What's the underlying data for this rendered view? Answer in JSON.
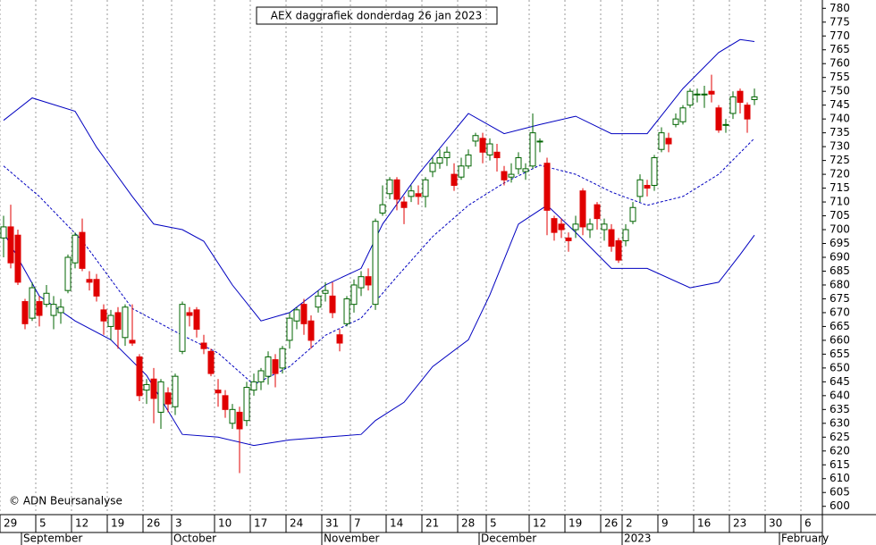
{
  "chart_data": {
    "type": "candlestick",
    "title": "AEX daggrafiek donderdag 26 jan 2023",
    "annotation": "© ADN Beursanalyse",
    "open": [
      697,
      701,
      698,
      674,
      668,
      674,
      673,
      669,
      670,
      678,
      688,
      699,
      682,
      682,
      671,
      665,
      670,
      661,
      660,
      654,
      642,
      646,
      634,
      641,
      636,
      656,
      670,
      671,
      659,
      656,
      642,
      640,
      630,
      634,
      631,
      642,
      645,
      647,
      653,
      650,
      660,
      667,
      673,
      667,
      672,
      677,
      676,
      662,
      666,
      673,
      679,
      683,
      673,
      706,
      713,
      718,
      710,
      712,
      713,
      712,
      721,
      724,
      726,
      720,
      719,
      723,
      732,
      733,
      727,
      728,
      721,
      719,
      722,
      721,
      723,
      732,
      724,
      704,
      702,
      697,
      700,
      714,
      700,
      709,
      700,
      700,
      696,
      696,
      703,
      712,
      716,
      716,
      729,
      733,
      738,
      739,
      745,
      749,
      749,
      750,
      744,
      738,
      742,
      750,
      745,
      747
    ],
    "high": [
      705,
      709,
      700,
      675,
      681,
      676,
      680,
      676,
      675,
      691,
      699,
      704,
      685,
      684,
      673,
      671,
      672,
      673,
      673,
      655,
      646,
      650,
      646,
      643,
      648,
      674,
      672,
      672,
      662,
      657,
      646,
      642,
      637,
      636,
      645,
      648,
      650,
      656,
      655,
      658,
      670,
      672,
      675,
      669,
      678,
      681,
      681,
      664,
      676,
      682,
      685,
      686,
      704,
      716,
      719,
      719,
      712,
      716,
      716,
      719,
      726,
      729,
      730,
      724,
      726,
      729,
      735,
      735,
      733,
      731,
      723,
      724,
      728,
      724,
      742,
      733,
      726,
      705,
      704,
      699,
      705,
      715,
      704,
      710,
      704,
      702,
      697,
      702,
      710,
      720,
      718,
      727,
      737,
      735,
      742,
      745,
      751,
      751,
      752,
      756,
      745,
      740,
      750,
      751,
      746,
      751
    ],
    "low": [
      690,
      686,
      680,
      664,
      667,
      665,
      672,
      664,
      666,
      677,
      686,
      685,
      678,
      674,
      662,
      660,
      657,
      658,
      658,
      638,
      637,
      630,
      628,
      634,
      633,
      655,
      665,
      661,
      655,
      647,
      636,
      632,
      628,
      612,
      629,
      640,
      642,
      644,
      643,
      648,
      657,
      664,
      662,
      657,
      670,
      674,
      668,
      656,
      665,
      670,
      676,
      678,
      671,
      705,
      711,
      707,
      702,
      710,
      709,
      708,
      719,
      722,
      723,
      714,
      718,
      722,
      730,
      724,
      725,
      721,
      716,
      717,
      720,
      718,
      722,
      728,
      698,
      696,
      697,
      692,
      697,
      698,
      697,
      700,
      696,
      692,
      688,
      694,
      702,
      710,
      712,
      714,
      728,
      728,
      737,
      738,
      744,
      746,
      744,
      746,
      735,
      735,
      740,
      742,
      735,
      745
    ],
    "close": [
      701,
      688,
      681,
      666,
      679,
      669,
      677,
      673,
      672,
      690,
      698,
      686,
      681,
      676,
      667,
      669,
      664,
      672,
      659,
      640,
      644,
      639,
      645,
      637,
      647,
      673,
      669,
      664,
      657,
      648,
      641,
      635,
      635,
      628,
      643,
      645,
      649,
      654,
      648,
      657,
      668,
      671,
      666,
      660,
      676,
      678,
      670,
      659,
      675,
      680,
      683,
      680,
      703,
      709,
      718,
      711,
      708,
      714,
      712,
      718,
      724,
      726,
      728,
      716,
      723,
      727,
      734,
      728,
      731,
      726,
      718,
      720,
      726,
      722,
      735,
      732,
      707,
      699,
      700,
      696,
      702,
      701,
      702,
      704,
      702,
      694,
      689,
      700,
      708,
      718,
      715,
      726,
      735,
      731,
      740,
      744,
      750,
      749,
      749,
      749,
      736,
      738,
      748,
      746,
      740,
      748
    ],
    "up_color": "#006400",
    "down_color": "#e00000",
    "band_color": "#0000c0",
    "bands": [
      {
        "x": [
          0,
          4,
          10,
          13,
          18,
          21,
          25,
          28,
          32,
          36,
          40,
          45,
          50,
          53,
          58,
          65,
          70,
          75,
          80,
          85,
          90,
          95,
          100,
          103,
          105
        ],
        "values": [
          739.5,
          747.6,
          742.8,
          729.8,
          712,
          702,
          700,
          695.8,
          680,
          667,
          670,
          680,
          686,
          702,
          720,
          742,
          734.7,
          738,
          741,
          734.7,
          734.7,
          751,
          764,
          768.7,
          768
        ],
        "dash": false
      },
      {
        "x": [
          0,
          5,
          11,
          18,
          25,
          30,
          35,
          40,
          45,
          50,
          55,
          60,
          65,
          70,
          75,
          80,
          85,
          90,
          95,
          100,
          105
        ],
        "values": [
          723,
          712,
          696,
          671.5,
          661.8,
          655.4,
          644,
          650.5,
          661.8,
          668,
          683,
          697.5,
          708.8,
          716.9,
          723.3,
          720,
          713.6,
          708.8,
          712,
          720,
          733
        ],
        "dash": true
      },
      {
        "x": [
          0,
          5,
          10,
          15,
          20,
          25,
          30,
          35,
          40,
          45,
          50,
          52,
          56,
          60,
          65,
          68,
          72,
          76,
          80,
          85,
          90,
          96,
          100,
          103,
          105
        ],
        "values": [
          699,
          676,
          667,
          660.2,
          647.3,
          626,
          625,
          622,
          624,
          625,
          626,
          631,
          637.6,
          650.5,
          660.2,
          676.4,
          702,
          708.8,
          699,
          686,
          686,
          679,
          681,
          691,
          698
        ],
        "dash": false
      }
    ],
    "xlim": [
      -0.5,
      114.5
    ],
    "ylim": [
      597,
      783
    ],
    "yticks": [
      600,
      605,
      610,
      615,
      620,
      625,
      630,
      635,
      640,
      645,
      650,
      655,
      660,
      665,
      670,
      675,
      680,
      685,
      690,
      695,
      700,
      705,
      710,
      715,
      720,
      725,
      730,
      735,
      740,
      745,
      750,
      755,
      760,
      765,
      770,
      775,
      780
    ],
    "xticks": [
      {
        "value": 0,
        "label": "29"
      },
      {
        "value": 5,
        "label": "5"
      },
      {
        "value": 10,
        "label": "12"
      },
      {
        "value": 15,
        "label": "19"
      },
      {
        "value": 20,
        "label": "26"
      },
      {
        "value": 24,
        "label": "3"
      },
      {
        "value": 30,
        "label": "10"
      },
      {
        "value": 35,
        "label": "17"
      },
      {
        "value": 40,
        "label": "24"
      },
      {
        "value": 45,
        "label": "31"
      },
      {
        "value": 49,
        "label": "7"
      },
      {
        "value": 54,
        "label": "14"
      },
      {
        "value": 59,
        "label": "21"
      },
      {
        "value": 64,
        "label": "28"
      },
      {
        "value": 68,
        "label": "5"
      },
      {
        "value": 74,
        "label": "12"
      },
      {
        "value": 79,
        "label": "19"
      },
      {
        "value": 84,
        "label": "26"
      },
      {
        "value": 87,
        "label": "2"
      },
      {
        "value": 92,
        "label": "9"
      },
      {
        "value": 97,
        "label": "16"
      },
      {
        "value": 102,
        "label": "23"
      },
      {
        "value": 107,
        "label": "30"
      },
      {
        "value": 112,
        "label": "6"
      }
    ],
    "months": [
      {
        "value": 3,
        "label": "September"
      },
      {
        "value": 24,
        "label": "October"
      },
      {
        "value": 45,
        "label": "November"
      },
      {
        "value": 67,
        "label": "December"
      },
      {
        "value": 87,
        "label": "2023"
      },
      {
        "value": 109,
        "label": "February"
      }
    ],
    "grid": true
  }
}
